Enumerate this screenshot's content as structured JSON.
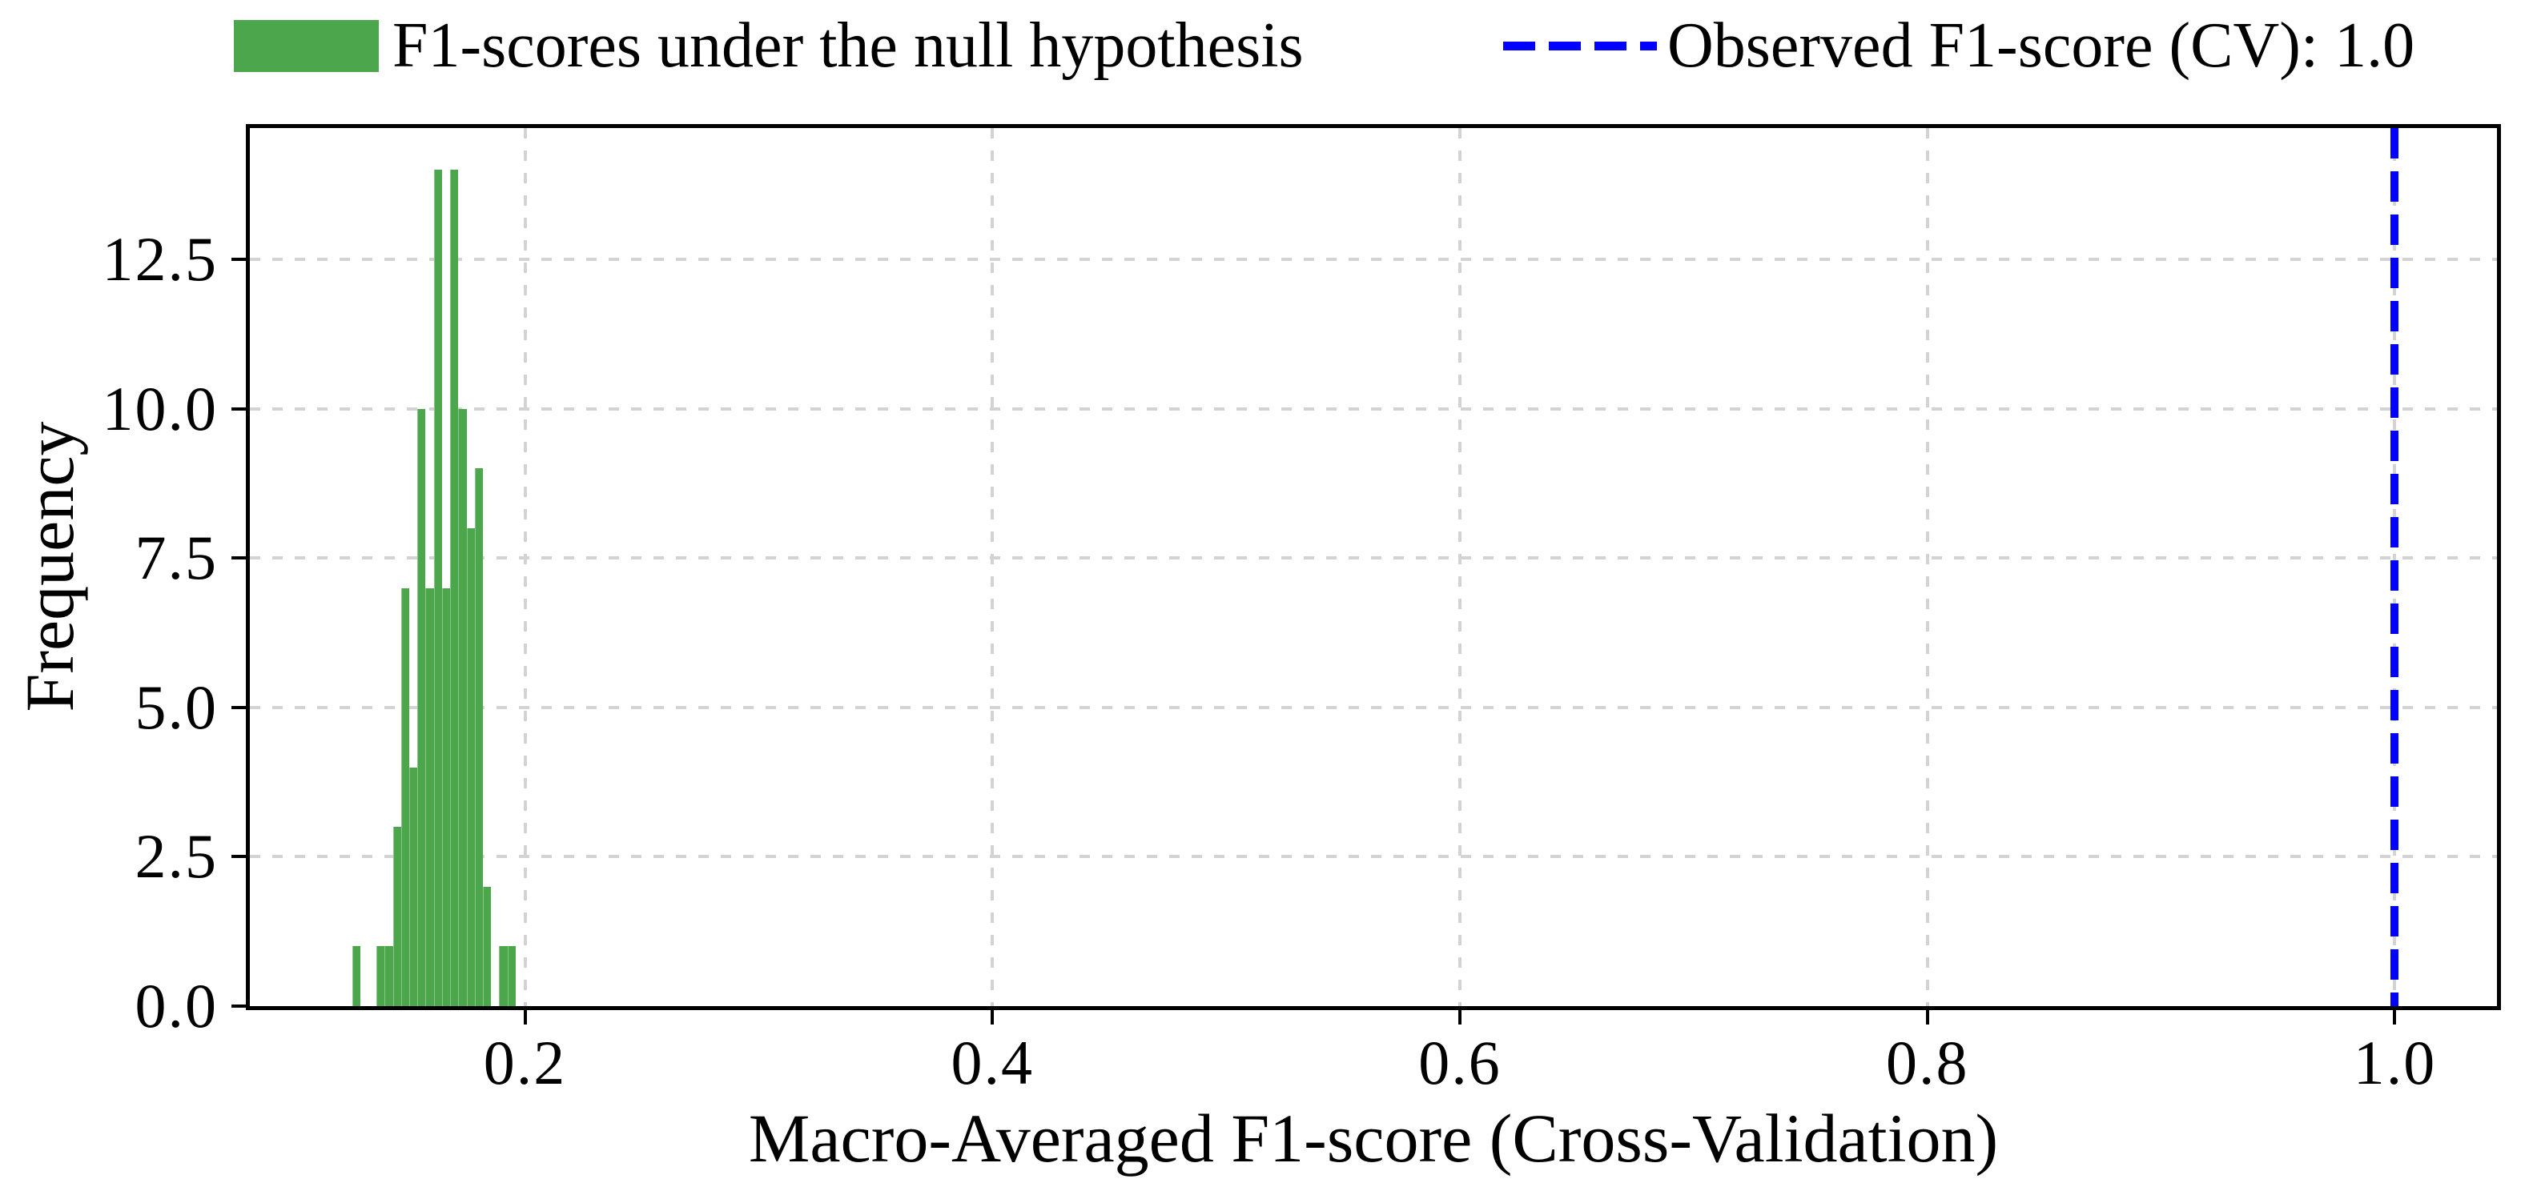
{
  "legend": {
    "entries": [
      {
        "type": "patch",
        "label": "F1-scores under the null hypothesis",
        "color": "#4CA64C"
      },
      {
        "type": "dashed-line",
        "label": "Observed F1-score (CV): 1.0",
        "color": "#0000FF"
      }
    ]
  },
  "chart_data": {
    "type": "histogram",
    "title": "",
    "xlabel": "Macro-Averaged F1-score (Cross-Validation)",
    "ylabel": "Frequency",
    "bin_start": 0.126,
    "bin_width": 0.0035,
    "counts": [
      1,
      0,
      0,
      1,
      1,
      3,
      7,
      4,
      10,
      7,
      14,
      7,
      14,
      10,
      8,
      9,
      2,
      0,
      1,
      1
    ],
    "n_permutations": 100,
    "observed_f1_cv": 1.0,
    "xlim": [
      0.0823,
      1.0437
    ],
    "ylim": [
      0,
      14.7
    ],
    "x_ticks": [
      0.2,
      0.4,
      0.6,
      0.8,
      1.0
    ],
    "x_tick_labels": [
      "0.2",
      "0.4",
      "0.6",
      "0.8",
      "1.0"
    ],
    "y_ticks": [
      0,
      2.5,
      5,
      7.5,
      10,
      12.5
    ],
    "y_tick_labels": [
      "0.0",
      "2.5",
      "5.0",
      "7.5",
      "10.0",
      "12.5"
    ],
    "grid": true,
    "legend_position": "top-outside",
    "colors": {
      "bars": "#4CA64C",
      "observed_line": "#0000FF",
      "grid": "#D3D3D3",
      "axis": "#000000",
      "background": "#FFFFFF"
    }
  }
}
